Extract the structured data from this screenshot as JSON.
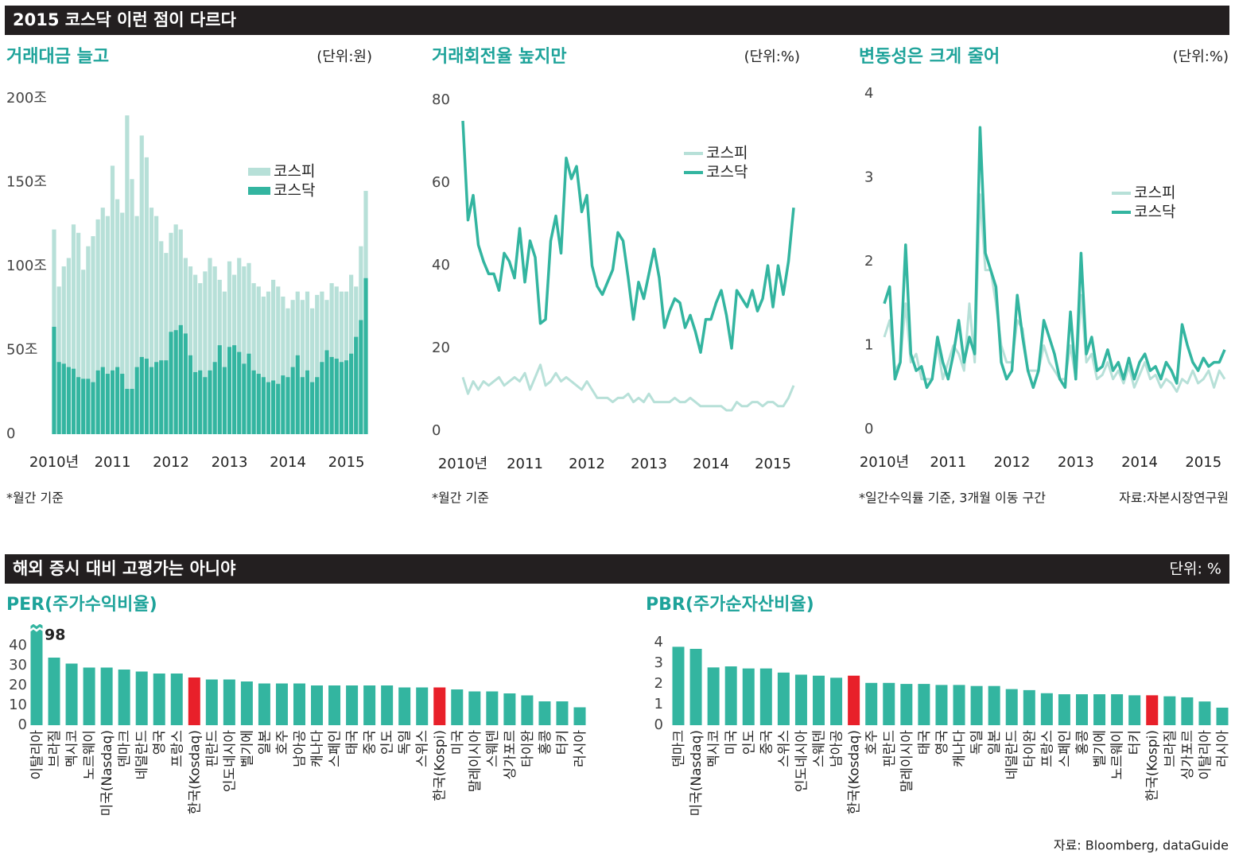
{
  "sections": [
    {
      "title": "2015 코스닥 이런 점이 다르다"
    },
    {
      "title": "해외 증시 대비 고평가는 아니야",
      "unit": "단위: %",
      "source": "자료: Bloomberg, dataGuide"
    }
  ],
  "chart_data": [
    {
      "type": "bar",
      "title": "거래대금 늘고",
      "unit": "(단위:원)",
      "note": "*월간 기준",
      "legend": "upper right",
      "categories": [
        "2010년",
        null,
        null,
        null,
        null,
        null,
        null,
        null,
        null,
        null,
        null,
        null,
        "2011",
        null,
        null,
        null,
        null,
        null,
        null,
        null,
        null,
        null,
        null,
        null,
        "2012",
        null,
        null,
        null,
        null,
        null,
        null,
        null,
        null,
        null,
        null,
        null,
        "2013",
        null,
        null,
        null,
        null,
        null,
        null,
        null,
        null,
        null,
        null,
        null,
        "2014",
        null,
        null,
        null,
        null,
        null,
        null,
        null,
        null,
        null,
        null,
        null,
        "2015",
        null,
        null,
        null,
        null
      ],
      "series": [
        {
          "name": "코스피",
          "color": "#b7e0d8",
          "values": [
            122,
            88,
            100,
            105,
            125,
            120,
            98,
            112,
            118,
            128,
            135,
            130,
            160,
            140,
            132,
            190,
            152,
            130,
            178,
            165,
            135,
            130,
            115,
            108,
            120,
            125,
            122,
            105,
            100,
            95,
            90,
            97,
            105,
            100,
            92,
            85,
            103,
            95,
            105,
            100,
            102,
            90,
            88,
            82,
            85,
            92,
            88,
            82,
            75,
            80,
            85,
            80,
            85,
            75,
            83,
            85,
            80,
            90,
            88,
            85,
            85,
            95,
            88,
            112,
            145
          ]
        },
        {
          "name": "코스닥",
          "color": "#33b5a0",
          "values": [
            64,
            43,
            42,
            40,
            39,
            34,
            33,
            33,
            31,
            38,
            40,
            36,
            38,
            40,
            36,
            27,
            27,
            40,
            46,
            45,
            40,
            43,
            44,
            44,
            61,
            62,
            65,
            60,
            47,
            37,
            38,
            34,
            38,
            43,
            53,
            40,
            52,
            53,
            49,
            42,
            48,
            38,
            36,
            34,
            31,
            32,
            30,
            35,
            34,
            40,
            47,
            34,
            38,
            31,
            34,
            43,
            50,
            46,
            45,
            43,
            44,
            48,
            58,
            68,
            93
          ]
        }
      ],
      "ylim": [
        0,
        200
      ],
      "yticks": [
        {
          "value": 0,
          "label": "0"
        },
        {
          "value": 50,
          "label": "50조"
        },
        {
          "value": 100,
          "label": "100조"
        },
        {
          "value": 150,
          "label": "150조"
        },
        {
          "value": 200,
          "label": "200조"
        }
      ]
    },
    {
      "type": "line",
      "title": "거래회전율 높지만",
      "unit": "(단위:%)",
      "note": "*월간 기준",
      "legend": "upper right",
      "categories": [
        "2010년",
        null,
        null,
        null,
        null,
        null,
        null,
        null,
        null,
        null,
        null,
        null,
        "2011",
        null,
        null,
        null,
        null,
        null,
        null,
        null,
        null,
        null,
        null,
        null,
        "2012",
        null,
        null,
        null,
        null,
        null,
        null,
        null,
        null,
        null,
        null,
        null,
        "2013",
        null,
        null,
        null,
        null,
        null,
        null,
        null,
        null,
        null,
        null,
        null,
        "2014",
        null,
        null,
        null,
        null,
        null,
        null,
        null,
        null,
        null,
        null,
        null,
        "2015",
        null,
        null,
        null,
        null
      ],
      "series": [
        {
          "name": "코스피",
          "color": "#b7e0d8",
          "values": [
            13,
            9,
            12,
            10,
            12,
            11,
            12,
            13,
            11,
            12,
            13,
            12,
            14,
            10,
            13,
            16,
            11,
            12,
            14,
            12,
            13,
            12,
            11,
            10,
            12,
            10,
            8,
            8,
            8,
            7,
            8,
            8,
            9,
            7,
            8,
            7,
            9,
            7,
            7,
            7,
            7,
            8,
            7,
            7,
            8,
            7,
            6,
            6,
            6,
            6,
            6,
            5,
            5,
            7,
            6,
            6,
            7,
            7,
            6,
            7,
            7,
            6,
            6,
            8,
            11
          ]
        },
        {
          "name": "코스닥",
          "color": "#33b5a0",
          "values": [
            75,
            51,
            57,
            45,
            41,
            38,
            38,
            34,
            43,
            41,
            37,
            49,
            36,
            46,
            42,
            26,
            27,
            46,
            52,
            43,
            66,
            61,
            64,
            53,
            57,
            40,
            35,
            33,
            36,
            39,
            48,
            46,
            37,
            27,
            36,
            32,
            38,
            44,
            37,
            25,
            29,
            32,
            31,
            25,
            28,
            24,
            19,
            27,
            27,
            31,
            34,
            28,
            20,
            34,
            32,
            30,
            34,
            29,
            32,
            40,
            30,
            40,
            33,
            41,
            54
          ]
        }
      ],
      "ylim": [
        0,
        80
      ],
      "yticks": [
        0,
        20,
        40,
        60,
        80
      ]
    },
    {
      "type": "line",
      "title": "변동성은 크게 줄어",
      "unit": "(단위:%)",
      "note": "*일간수익률 기준, 3개월 이동 구간",
      "source": "자료:자본시장연구원",
      "legend": "upper right",
      "categories": [
        "2010년",
        null,
        null,
        null,
        null,
        null,
        null,
        null,
        null,
        null,
        null,
        null,
        "2011",
        null,
        null,
        null,
        null,
        null,
        null,
        null,
        null,
        null,
        null,
        null,
        "2012",
        null,
        null,
        null,
        null,
        null,
        null,
        null,
        null,
        null,
        null,
        null,
        "2013",
        null,
        null,
        null,
        null,
        null,
        null,
        null,
        null,
        null,
        null,
        null,
        "2014",
        null,
        null,
        null,
        null,
        null,
        null,
        null,
        null,
        null,
        null,
        null,
        "2015",
        null,
        null,
        null,
        null
      ],
      "series": [
        {
          "name": "코스피",
          "color": "#b7e0d8",
          "values": [
            1.1,
            1.3,
            0.7,
            0.8,
            1.5,
            0.8,
            0.9,
            0.6,
            0.6,
            0.6,
            1.0,
            0.6,
            0.8,
            1.0,
            0.9,
            0.7,
            1.5,
            0.8,
            2.8,
            1.9,
            1.9,
            1.5,
            1.0,
            0.8,
            0.8,
            1.3,
            1.2,
            0.7,
            0.7,
            0.7,
            1.0,
            0.8,
            0.7,
            0.6,
            0.6,
            1.0,
            0.6,
            1.6,
            0.8,
            0.9,
            0.6,
            0.65,
            0.8,
            0.6,
            0.7,
            0.55,
            0.75,
            0.5,
            0.65,
            0.8,
            0.6,
            0.65,
            0.5,
            0.6,
            0.55,
            0.45,
            0.6,
            0.55,
            0.7,
            0.55,
            0.6,
            0.7,
            0.5,
            0.7,
            0.6
          ]
        },
        {
          "name": "코스닥",
          "color": "#33b5a0",
          "values": [
            1.5,
            1.7,
            0.6,
            0.8,
            2.2,
            0.9,
            0.7,
            0.75,
            0.5,
            0.6,
            1.1,
            0.8,
            0.6,
            0.9,
            1.3,
            0.8,
            1.1,
            0.9,
            3.6,
            2.1,
            1.9,
            1.7,
            0.8,
            0.6,
            0.7,
            1.6,
            1.1,
            0.7,
            0.5,
            0.7,
            1.3,
            1.1,
            0.9,
            0.6,
            0.5,
            1.4,
            0.6,
            2.1,
            0.9,
            1.1,
            0.7,
            0.75,
            0.95,
            0.7,
            0.8,
            0.6,
            0.85,
            0.6,
            0.8,
            0.9,
            0.7,
            0.75,
            0.6,
            0.8,
            0.7,
            0.55,
            1.25,
            1.0,
            0.8,
            0.7,
            0.85,
            0.75,
            0.8,
            0.8,
            0.95
          ]
        }
      ],
      "ylim": [
        0,
        4
      ],
      "yticks": [
        0,
        1,
        2,
        3,
        4
      ]
    },
    {
      "type": "bar",
      "title": "PER(주가수익비율)",
      "categories": [
        "이탈리아",
        "브라질",
        "멕시코",
        "노르웨이",
        "미국(Nasdaq)",
        "덴마크",
        "네덜란드",
        "영국",
        "프랑스",
        "한국(Kosdaq)",
        "핀란드",
        "인도네시아",
        "벨기에",
        "일본",
        "호주",
        "남아공",
        "캐나다",
        "스페인",
        "태국",
        "중국",
        "인도",
        "독일",
        "스위스",
        "한국(Kospi)",
        "미국",
        "말레이시아",
        "스웨덴",
        "싱가포르",
        "타이완",
        "홍콩",
        "터키",
        "러시아"
      ],
      "values": [
        98,
        34,
        31,
        29,
        29,
        28,
        27,
        26,
        26,
        24,
        23,
        23,
        22,
        21,
        21,
        21,
        20,
        20,
        20,
        20,
        20,
        19,
        19,
        19,
        18,
        17,
        17,
        16,
        15,
        12,
        12,
        9
      ],
      "value_labels": [
        "98",
        null,
        null,
        null,
        null,
        null,
        null,
        null,
        null,
        null,
        null,
        null,
        null,
        null,
        null,
        null,
        null,
        null,
        null,
        null,
        null,
        null,
        null,
        null,
        null,
        null,
        null,
        null,
        null,
        null,
        null,
        null
      ],
      "colors": [
        "#33b5a0",
        "#33b5a0",
        "#33b5a0",
        "#33b5a0",
        "#33b5a0",
        "#33b5a0",
        "#33b5a0",
        "#33b5a0",
        "#33b5a0",
        "#e8202a",
        "#33b5a0",
        "#33b5a0",
        "#33b5a0",
        "#33b5a0",
        "#33b5a0",
        "#33b5a0",
        "#33b5a0",
        "#33b5a0",
        "#33b5a0",
        "#33b5a0",
        "#33b5a0",
        "#33b5a0",
        "#33b5a0",
        "#e8202a",
        "#33b5a0",
        "#33b5a0",
        "#33b5a0",
        "#33b5a0",
        "#33b5a0",
        "#33b5a0",
        "#33b5a0",
        "#33b5a0"
      ],
      "ylim": [
        0,
        50
      ],
      "yticks": [
        0,
        10,
        20,
        30,
        40
      ]
    },
    {
      "type": "bar",
      "title": "PBR(주가순자산비율)",
      "categories": [
        "덴마크",
        "미국(Nasdaq)",
        "멕시코",
        "미국",
        "인도",
        "중국",
        "스위스",
        "인도네시아",
        "스웨덴",
        "남아공",
        "한국(Kosdaq)",
        "호주",
        "핀란드",
        "말레이시아",
        "태국",
        "영국",
        "캐나다",
        "독일",
        "일본",
        "네덜란드",
        "타이완",
        "프랑스",
        "스페인",
        "홍콩",
        "벨기에",
        "노르웨이",
        "터키",
        "한국(Kospi)",
        "브라질",
        "싱가포르",
        "이탈리아",
        "러시아"
      ],
      "values": [
        3.8,
        3.7,
        2.8,
        2.85,
        2.75,
        2.75,
        2.55,
        2.45,
        2.4,
        2.3,
        2.4,
        2.05,
        2.05,
        2.0,
        2.0,
        1.95,
        1.95,
        1.9,
        1.9,
        1.75,
        1.7,
        1.55,
        1.5,
        1.5,
        1.5,
        1.5,
        1.45,
        1.45,
        1.4,
        1.35,
        1.15,
        0.85
      ],
      "colors": [
        "#33b5a0",
        "#33b5a0",
        "#33b5a0",
        "#33b5a0",
        "#33b5a0",
        "#33b5a0",
        "#33b5a0",
        "#33b5a0",
        "#33b5a0",
        "#33b5a0",
        "#e8202a",
        "#33b5a0",
        "#33b5a0",
        "#33b5a0",
        "#33b5a0",
        "#33b5a0",
        "#33b5a0",
        "#33b5a0",
        "#33b5a0",
        "#33b5a0",
        "#33b5a0",
        "#33b5a0",
        "#33b5a0",
        "#33b5a0",
        "#33b5a0",
        "#33b5a0",
        "#33b5a0",
        "#e8202a",
        "#33b5a0",
        "#33b5a0",
        "#33b5a0",
        "#33b5a0"
      ],
      "ylim": [
        0,
        4.2
      ],
      "yticks": [
        0,
        1,
        2,
        3,
        4
      ]
    }
  ]
}
